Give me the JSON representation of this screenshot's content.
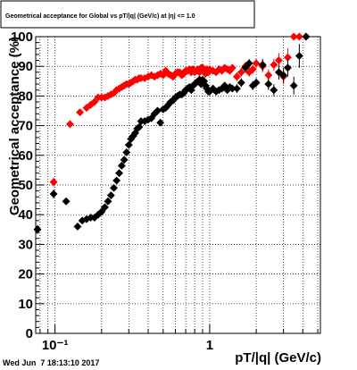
{
  "chart_data": {
    "type": "scatter",
    "title": "Geometrical acceptance for Global vs pT/|q| (GeV/c) at |η| <= 1.0",
    "xlabel": "pT/|q| (GeV/c)",
    "ylabel": "Geometrical acceptance (%)",
    "x_scale": "log",
    "xlim": [
      0.075,
      5.2
    ],
    "ylim": [
      0,
      100
    ],
    "x_ticks": [
      {
        "value": 0.1,
        "label": "10⁻¹"
      },
      {
        "value": 1,
        "label": "1"
      }
    ],
    "y_ticks": [
      0,
      10,
      20,
      30,
      40,
      50,
      60,
      70,
      80,
      90,
      100
    ],
    "grid": true,
    "legend": "none",
    "timestamp": "Wed Jun  7 18:13:10 2017",
    "series": [
      {
        "color": "#ff0000",
        "marker": "diamond",
        "x": [
          0.077,
          0.098,
          0.125,
          0.145,
          0.16,
          0.17,
          0.18,
          0.19,
          0.2,
          0.21,
          0.22,
          0.23,
          0.24,
          0.25,
          0.26,
          0.27,
          0.28,
          0.29,
          0.3,
          0.31,
          0.32,
          0.33,
          0.34,
          0.35,
          0.36,
          0.38,
          0.4,
          0.42,
          0.44,
          0.46,
          0.48,
          0.5,
          0.52,
          0.54,
          0.56,
          0.58,
          0.6,
          0.62,
          0.64,
          0.66,
          0.68,
          0.7,
          0.72,
          0.74,
          0.76,
          0.78,
          0.8,
          0.82,
          0.84,
          0.86,
          0.88,
          0.9,
          0.92,
          0.94,
          0.96,
          0.98,
          1.0,
          1.05,
          1.1,
          1.15,
          1.2,
          1.25,
          1.3,
          1.35,
          1.4,
          1.5,
          1.6,
          1.7,
          1.8,
          1.9,
          2.0,
          2.2,
          2.4,
          2.6,
          2.8,
          3.0,
          3.2,
          3.5,
          3.8,
          4.2
        ],
        "y": [
          35,
          51,
          70.5,
          74.5,
          76,
          77,
          78,
          79.5,
          79.5,
          79.5,
          80,
          80.5,
          81,
          82,
          82.5,
          83,
          83.5,
          84,
          84,
          84.5,
          85,
          85.5,
          85.5,
          86,
          86,
          86,
          86.5,
          87,
          86.5,
          87,
          87.5,
          87,
          88.5,
          87.5,
          87,
          86.5,
          87.5,
          88,
          88,
          87,
          87.5,
          88.5,
          88.5,
          89,
          88,
          89,
          88,
          88.5,
          89,
          88,
          89.5,
          89.5,
          88.5,
          87.5,
          89,
          88,
          89,
          88.5,
          88,
          89,
          88.5,
          89.5,
          89,
          88.5,
          89.5,
          86.5,
          88,
          90,
          88,
          89,
          91,
          90,
          87,
          90.5,
          92,
          86.5,
          93,
          100,
          100,
          100
        ],
        "err": [
          1.5,
          1.5,
          1.0,
          0.8,
          0.8,
          0.8,
          0.8,
          0.8,
          0.8,
          0.8,
          0.8,
          0.8,
          0.8,
          0.8,
          0.8,
          0.8,
          0.8,
          0.8,
          0.8,
          0.8,
          0.8,
          0.8,
          0.8,
          0.8,
          0.8,
          0.8,
          0.8,
          0.8,
          0.8,
          0.8,
          0.8,
          0.8,
          0.8,
          0.8,
          0.8,
          0.8,
          0.8,
          0.8,
          0.8,
          0.8,
          0.8,
          0.8,
          0.8,
          0.8,
          0.8,
          0.8,
          0.8,
          0.8,
          0.8,
          0.8,
          0.8,
          0.8,
          0.8,
          0.8,
          0.8,
          0.8,
          1.0,
          1.0,
          1.0,
          1.0,
          1.0,
          1.0,
          1.0,
          1.0,
          1.0,
          1.5,
          1.5,
          1.5,
          1.5,
          1.5,
          1.5,
          2.0,
          2.0,
          2.0,
          2.5,
          2.5,
          3.0,
          0.5,
          0.5,
          0.5
        ]
      },
      {
        "color": "#000000",
        "marker": "diamond",
        "x": [
          0.077,
          0.098,
          0.118,
          0.14,
          0.15,
          0.16,
          0.17,
          0.18,
          0.19,
          0.2,
          0.21,
          0.22,
          0.23,
          0.24,
          0.25,
          0.26,
          0.27,
          0.28,
          0.29,
          0.3,
          0.31,
          0.32,
          0.33,
          0.34,
          0.35,
          0.36,
          0.38,
          0.4,
          0.42,
          0.44,
          0.46,
          0.48,
          0.5,
          0.52,
          0.54,
          0.56,
          0.58,
          0.6,
          0.62,
          0.64,
          0.66,
          0.68,
          0.7,
          0.72,
          0.74,
          0.76,
          0.78,
          0.8,
          0.82,
          0.84,
          0.86,
          0.88,
          0.9,
          0.92,
          0.94,
          0.96,
          0.98,
          1.0,
          1.05,
          1.1,
          1.15,
          1.2,
          1.25,
          1.3,
          1.35,
          1.4,
          1.5,
          1.6,
          1.7,
          1.8,
          1.9,
          2.0,
          2.2,
          2.4,
          2.6,
          2.8,
          3.0,
          3.2,
          3.5,
          3.8,
          4.2
        ],
        "y": [
          35,
          47,
          44.5,
          36,
          38,
          38.5,
          39,
          39,
          40,
          41,
          42.5,
          44.5,
          46.5,
          49,
          51.5,
          54,
          56.5,
          58.5,
          61,
          63.5,
          65.5,
          66.5,
          67.5,
          69,
          69.5,
          71.5,
          71.5,
          72,
          72.5,
          74,
          75,
          71,
          75.5,
          76,
          77,
          78,
          78.5,
          79.5,
          80,
          80.5,
          80.5,
          81,
          82,
          82.5,
          83,
          82,
          83.5,
          84,
          84.5,
          85,
          85.5,
          84,
          85.5,
          85,
          83.5,
          82.5,
          81.5,
          81.5,
          82.5,
          81.5,
          82,
          82.5,
          83.5,
          82,
          83,
          82.5,
          82.5,
          84.5,
          89.5,
          91,
          83.5,
          84.5,
          90.5,
          84,
          82,
          88,
          87,
          89.5,
          83.5,
          93.5,
          100
        ],
        "err": [
          1.5,
          1.5,
          1.0,
          0.8,
          0.8,
          0.8,
          0.8,
          0.8,
          0.8,
          0.8,
          0.8,
          0.8,
          0.8,
          0.8,
          0.8,
          0.8,
          0.8,
          0.8,
          0.8,
          0.8,
          0.8,
          0.8,
          0.8,
          0.8,
          0.8,
          0.8,
          0.8,
          0.8,
          0.8,
          0.8,
          0.8,
          0.8,
          0.8,
          0.8,
          0.8,
          0.8,
          0.8,
          0.8,
          0.8,
          0.8,
          0.8,
          0.8,
          0.8,
          0.8,
          0.8,
          0.8,
          0.8,
          0.8,
          0.8,
          0.8,
          0.8,
          0.8,
          0.8,
          0.8,
          0.8,
          0.8,
          0.8,
          1.0,
          1.0,
          1.0,
          1.0,
          1.0,
          1.0,
          1.0,
          1.0,
          1.0,
          1.5,
          1.5,
          1.5,
          1.5,
          1.5,
          1.5,
          2.0,
          2.0,
          2.0,
          2.5,
          2.5,
          3.0,
          3.0,
          4.0,
          0.5
        ]
      }
    ]
  }
}
